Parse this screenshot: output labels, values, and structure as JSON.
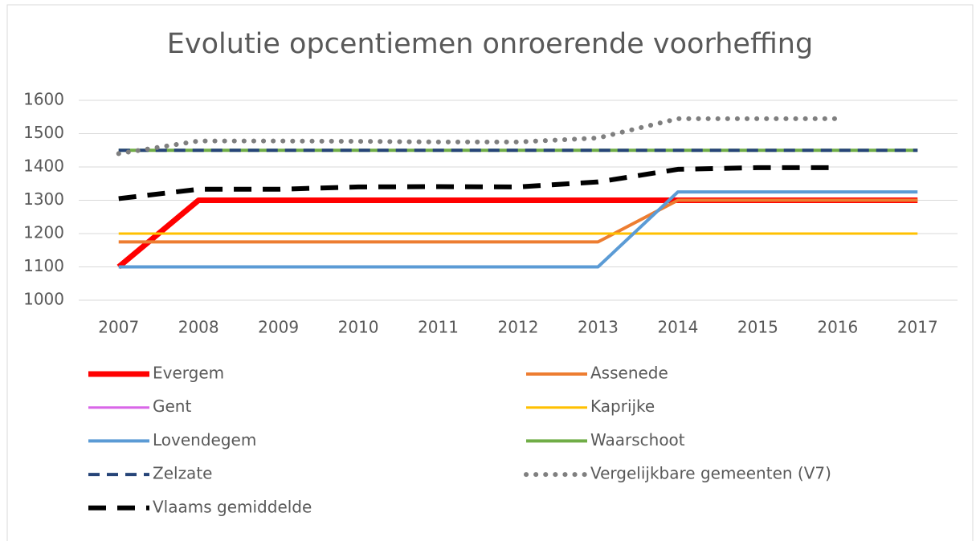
{
  "chart_data": {
    "type": "line",
    "title": "Evolutie opcentiemen onroerende voorheffing",
    "categories": [
      "2007",
      "2008",
      "2009",
      "2010",
      "2011",
      "2012",
      "2013",
      "2014",
      "2015",
      "2016",
      "2017"
    ],
    "ylim": [
      1000,
      1600
    ],
    "yticks": [
      1000,
      1100,
      1200,
      1300,
      1400,
      1500,
      1600
    ],
    "grid": true,
    "series": [
      {
        "name": "Evergem",
        "color": "#ff0000",
        "style": "solid",
        "values": [
          1100,
          1300,
          1300,
          1300,
          1300,
          1300,
          1300,
          1300,
          1300,
          1300,
          1300
        ]
      },
      {
        "name": "Assenede",
        "color": "#ed7d31",
        "style": "solid",
        "values": [
          1175,
          1175,
          1175,
          1175,
          1175,
          1175,
          1175,
          1300,
          1300,
          1300,
          1300
        ]
      },
      {
        "name": "Gent",
        "color": "#d966e8",
        "style": "solid",
        "values": [
          1450,
          1450,
          1450,
          1450,
          1450,
          1450,
          1450,
          1450,
          1450,
          1450,
          1450
        ]
      },
      {
        "name": "Kaprijke",
        "color": "#ffc000",
        "style": "solid",
        "values": [
          1200,
          1200,
          1200,
          1200,
          1200,
          1200,
          1200,
          1200,
          1200,
          1200,
          1200
        ]
      },
      {
        "name": "Lovendegem",
        "color": "#5b9bd5",
        "style": "solid",
        "values": [
          1100,
          1100,
          1100,
          1100,
          1100,
          1100,
          1100,
          1325,
          1325,
          1325,
          1325
        ]
      },
      {
        "name": "Waarschoot",
        "color": "#70ad47",
        "style": "solid",
        "values": [
          1450,
          1450,
          1450,
          1450,
          1450,
          1450,
          1450,
          1450,
          1450,
          1450,
          1450
        ]
      },
      {
        "name": "Zelzate",
        "color": "#264478",
        "style": "dashed",
        "values": [
          1450,
          1450,
          1450,
          1450,
          1450,
          1450,
          1450,
          1450,
          1450,
          1450,
          1450
        ]
      },
      {
        "name": "Vergelijkbare gemeenten (V7)",
        "color": "#7f7f7f",
        "style": "dotted",
        "values": [
          1440,
          1478,
          1478,
          1477,
          1475,
          1475,
          1487,
          1545,
          1545,
          1545,
          null
        ]
      },
      {
        "name": "Vlaams gemiddelde",
        "color": "#000000",
        "style": "long-dash",
        "values": [
          1305,
          1333,
          1333,
          1340,
          1341,
          1340,
          1355,
          1393,
          1398,
          1398,
          null
        ]
      }
    ]
  }
}
